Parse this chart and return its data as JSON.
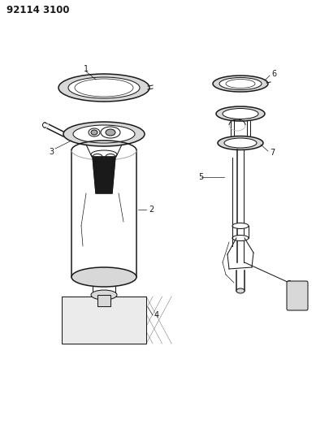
{
  "title": "92114 3100",
  "bg_color": "#ffffff",
  "line_color": "#1a1a1a",
  "title_fontsize": 8.5,
  "label_fontsize": 7,
  "figsize": [
    3.89,
    5.33
  ],
  "dpi": 100,
  "lw_heavy": 1.1,
  "lw_med": 0.75,
  "lw_light": 0.5,
  "gray_light": "#d8d8d8",
  "gray_mid": "#aaaaaa",
  "gray_dark": "#555555",
  "black": "#111111"
}
